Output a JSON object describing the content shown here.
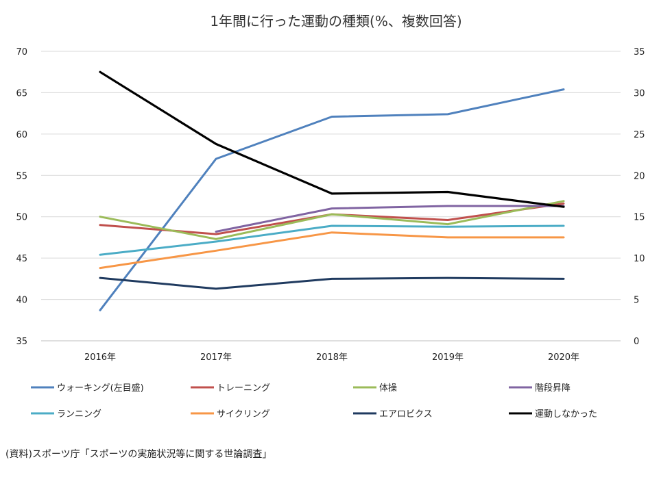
{
  "chart_data": {
    "type": "line",
    "title": "1年間に行った運動の種類(%、複数回答)",
    "categories": [
      "2016年",
      "2017年",
      "2018年",
      "2019年",
      "2020年"
    ],
    "y_left": {
      "min": 35,
      "max": 70,
      "step": 5,
      "ticks": [
        "35",
        "40",
        "45",
        "50",
        "55",
        "60",
        "65",
        "70"
      ]
    },
    "y_right": {
      "min": 0,
      "max": 35,
      "step": 5,
      "ticks": [
        "0",
        "5",
        "10",
        "15",
        "20",
        "25",
        "30",
        "35"
      ]
    },
    "grid": true,
    "legend_position": "bottom",
    "series": [
      {
        "name": "ウォーキング(左目盛)",
        "axis": "left",
        "color": "#4f81bd",
        "values": [
          38.7,
          57.0,
          62.1,
          62.4,
          65.4
        ]
      },
      {
        "name": "トレーニング",
        "axis": "right",
        "color": "#c0504d",
        "values": [
          14.0,
          12.9,
          15.3,
          14.6,
          16.6
        ]
      },
      {
        "name": "体操",
        "axis": "right",
        "color": "#9bbb59",
        "values": [
          15.0,
          12.3,
          15.3,
          14.1,
          16.9
        ]
      },
      {
        "name": "階段昇降",
        "axis": "right",
        "color": "#8064a2",
        "values": [
          null,
          13.2,
          16.0,
          16.3,
          16.3
        ]
      },
      {
        "name": "ランニング",
        "axis": "right",
        "color": "#4bacc6",
        "values": [
          10.4,
          12.0,
          13.9,
          13.8,
          13.9
        ]
      },
      {
        "name": "サイクリング",
        "axis": "right",
        "color": "#f79646",
        "values": [
          8.8,
          10.9,
          13.1,
          12.5,
          12.5
        ]
      },
      {
        "name": "エアロビクス",
        "axis": "right",
        "color": "#1f3a5f",
        "values": [
          7.6,
          6.3,
          7.5,
          7.6,
          7.5
        ]
      },
      {
        "name": "運動しなかった",
        "axis": "right",
        "color": "#000000",
        "values": [
          32.5,
          23.8,
          17.8,
          18.0,
          16.2
        ]
      }
    ],
    "source_note": "(資料)スポーツ庁「スポーツの実施状況等に関する世論調査」"
  }
}
